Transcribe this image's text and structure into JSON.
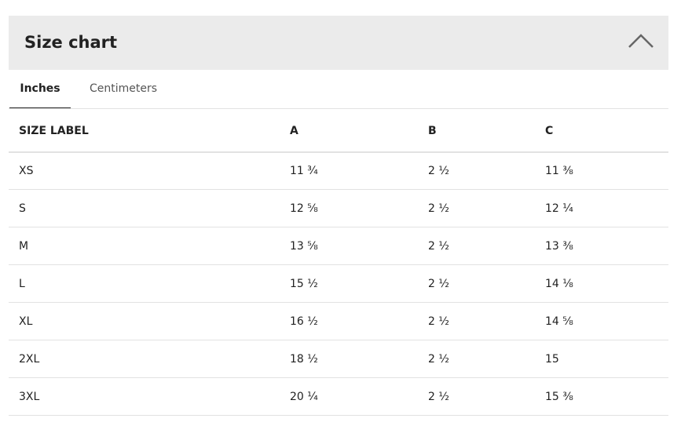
{
  "header": {
    "title": "Size chart"
  },
  "tabs": [
    "Inches",
    "Centimeters"
  ],
  "table": {
    "columns": [
      "SIZE LABEL",
      "A",
      "B",
      "C"
    ],
    "rows": [
      [
        "XS",
        "11 ¾",
        "2 ½",
        "11 ⅜"
      ],
      [
        "S",
        "12 ⅝",
        "2 ½",
        "12 ¼"
      ],
      [
        "M",
        "13 ⅝",
        "2 ½",
        "13 ⅜"
      ],
      [
        "L",
        "15 ½",
        "2 ½",
        "14 ⅛"
      ],
      [
        "XL",
        "16 ½",
        "2 ½",
        "14 ⅝"
      ],
      [
        "2XL",
        "18 ½",
        "2 ½",
        "15"
      ],
      [
        "3XL",
        "20 ¼",
        "2 ½",
        "15 ⅜"
      ]
    ]
  }
}
